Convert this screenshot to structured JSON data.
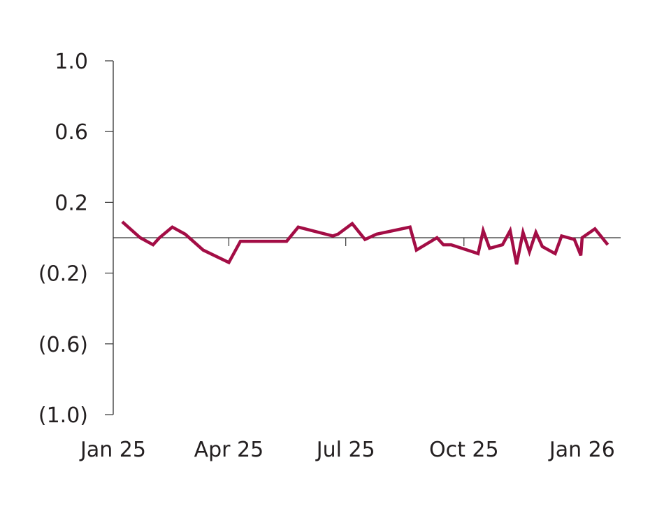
{
  "chart_data": {
    "type": "line",
    "title": "",
    "xlabel": "",
    "ylabel": "",
    "ylim": [
      -1.0,
      1.0
    ],
    "y_ticks": [
      {
        "value": 1.0,
        "label": "1.0"
      },
      {
        "value": 0.6,
        "label": "0.6"
      },
      {
        "value": 0.2,
        "label": "0.2"
      },
      {
        "value": -0.2,
        "label": "(0.2)"
      },
      {
        "value": -0.6,
        "label": "(0.6)"
      },
      {
        "value": -1.0,
        "label": "(1.0)"
      }
    ],
    "xlim": [
      "2025-01-01",
      "2026-01-31"
    ],
    "x_ticks": [
      {
        "date": "2025-01-01",
        "label": "Jan 25"
      },
      {
        "date": "2025-04-01",
        "label": "Apr 25"
      },
      {
        "date": "2025-07-01",
        "label": "Jul 25"
      },
      {
        "date": "2025-10-01",
        "label": "Oct 25"
      },
      {
        "date": "2026-01-01",
        "label": "Jan 26"
      }
    ],
    "grid": false,
    "zero_line": true,
    "series": [
      {
        "color": "#a30d45",
        "points": [
          {
            "x": "2025-01-08",
            "y": 0.09
          },
          {
            "x": "2025-01-22",
            "y": 0.0
          },
          {
            "x": "2025-02-01",
            "y": -0.04
          },
          {
            "x": "2025-02-06",
            "y": 0.0
          },
          {
            "x": "2025-02-16",
            "y": 0.06
          },
          {
            "x": "2025-02-26",
            "y": 0.02
          },
          {
            "x": "2025-03-12",
            "y": -0.07
          },
          {
            "x": "2025-04-01",
            "y": -0.14
          },
          {
            "x": "2025-04-10",
            "y": -0.02
          },
          {
            "x": "2025-05-16",
            "y": -0.02
          },
          {
            "x": "2025-05-25",
            "y": 0.06
          },
          {
            "x": "2025-06-21",
            "y": 0.01
          },
          {
            "x": "2025-06-25",
            "y": 0.02
          },
          {
            "x": "2025-07-06",
            "y": 0.08
          },
          {
            "x": "2025-07-16",
            "y": -0.01
          },
          {
            "x": "2025-07-25",
            "y": 0.02
          },
          {
            "x": "2025-08-20",
            "y": 0.06
          },
          {
            "x": "2025-08-25",
            "y": -0.07
          },
          {
            "x": "2025-09-10",
            "y": 0.0
          },
          {
            "x": "2025-09-15",
            "y": -0.04
          },
          {
            "x": "2025-09-21",
            "y": -0.04
          },
          {
            "x": "2025-10-08",
            "y": -0.08
          },
          {
            "x": "2025-10-12",
            "y": -0.09
          },
          {
            "x": "2025-10-16",
            "y": 0.04
          },
          {
            "x": "2025-10-21",
            "y": -0.06
          },
          {
            "x": "2025-10-31",
            "y": -0.04
          },
          {
            "x": "2025-11-06",
            "y": 0.04
          },
          {
            "x": "2025-11-11",
            "y": -0.15
          },
          {
            "x": "2025-11-16",
            "y": 0.03
          },
          {
            "x": "2025-11-21",
            "y": -0.08
          },
          {
            "x": "2025-11-26",
            "y": 0.03
          },
          {
            "x": "2025-12-01",
            "y": -0.05
          },
          {
            "x": "2025-12-11",
            "y": -0.09
          },
          {
            "x": "2025-12-16",
            "y": 0.01
          },
          {
            "x": "2025-12-26",
            "y": -0.01
          },
          {
            "x": "2025-12-31",
            "y": -0.1
          },
          {
            "x": "2026-01-01",
            "y": 0.0
          },
          {
            "x": "2026-01-11",
            "y": 0.05
          },
          {
            "x": "2026-01-21",
            "y": -0.04
          }
        ]
      }
    ]
  }
}
